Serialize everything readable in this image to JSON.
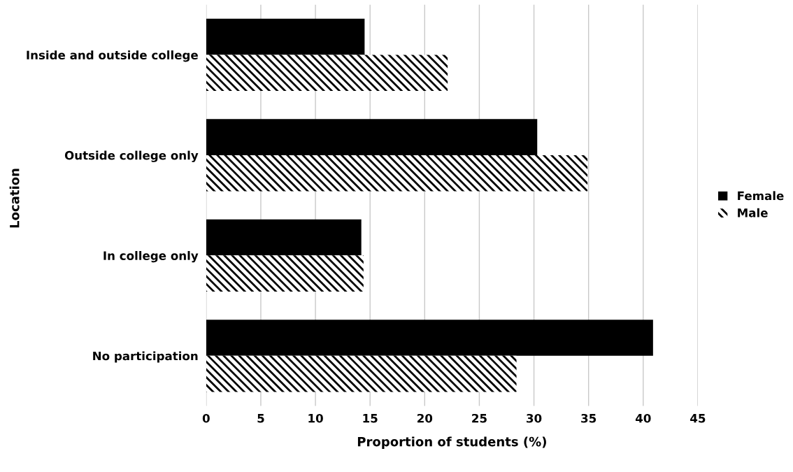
{
  "chart_data": {
    "type": "bar",
    "orientation": "horizontal",
    "xlabel": "Proportion of students (%)",
    "ylabel": "Location",
    "categories": [
      "Inside and outside college",
      "Outside college only",
      "In college only",
      "No participation"
    ],
    "series": [
      {
        "name": "Female",
        "color": "#000000",
        "values": [
          14.5,
          30.3,
          14.2,
          40.9
        ]
      },
      {
        "name": "Male",
        "color": "#000000",
        "values": [
          22.1,
          34.9,
          14.4,
          28.4
        ]
      }
    ],
    "xlim": [
      0,
      45
    ],
    "xticks": [
      0,
      5,
      10,
      15,
      20,
      25,
      30,
      35,
      40,
      45
    ],
    "grid": "x",
    "legend": "right"
  }
}
